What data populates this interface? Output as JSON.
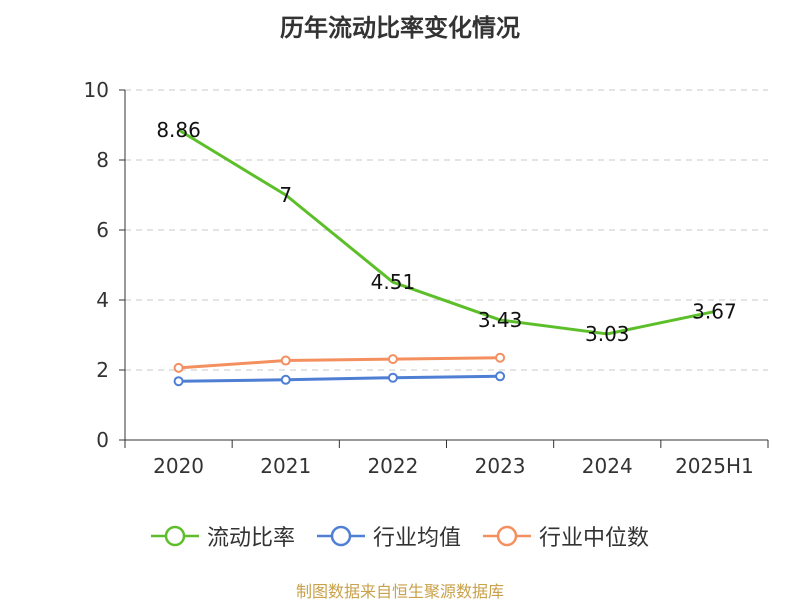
{
  "title": "历年流动比率变化情况",
  "source": "制图数据来自恒生聚源数据库",
  "chart_data": {
    "type": "line",
    "categories": [
      "2020",
      "2021",
      "2022",
      "2023",
      "2024",
      "2025H1"
    ],
    "ylim": [
      0,
      10
    ],
    "yticks": [
      0,
      2,
      4,
      6,
      8,
      10
    ],
    "grid": true,
    "legend_position": "bottom",
    "series": [
      {
        "name": "流动比率",
        "color": "#5cbf2a",
        "values": [
          8.86,
          7,
          4.51,
          3.43,
          3.03,
          3.67
        ],
        "labels": [
          "8.86",
          "7",
          "4.51",
          "3.43",
          "3.03",
          "3.67"
        ]
      },
      {
        "name": "行业均值",
        "color": "#4f7fd4",
        "values": [
          1.68,
          1.72,
          1.78,
          1.82,
          null,
          null
        ]
      },
      {
        "name": "行业中位数",
        "color": "#f49060",
        "values": [
          2.06,
          2.27,
          2.31,
          2.35,
          null,
          null
        ]
      }
    ]
  }
}
